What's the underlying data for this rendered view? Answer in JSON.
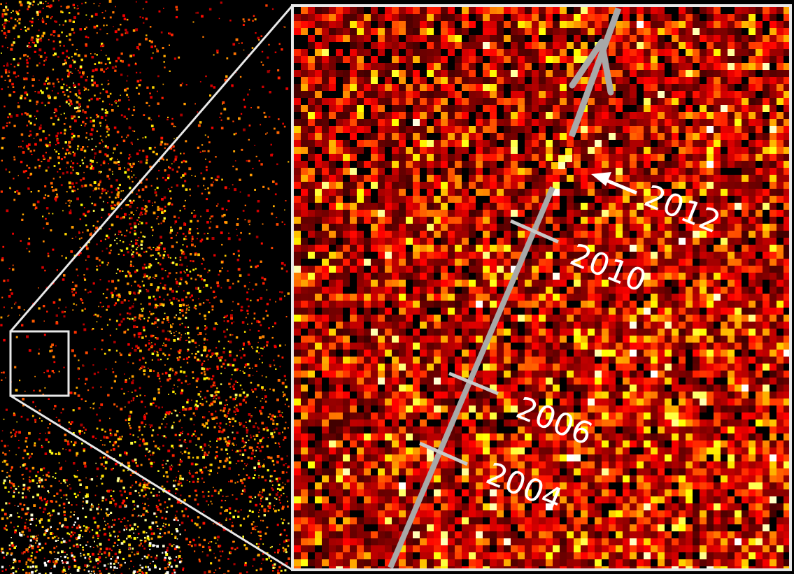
{
  "figure": {
    "year_labels": [
      {
        "id": "2012",
        "text": "2012"
      },
      {
        "id": "2010",
        "text": "2010"
      },
      {
        "id": "2006",
        "text": "2006"
      },
      {
        "id": "2004",
        "text": "2004"
      }
    ],
    "colors": {
      "background": "#000000",
      "frame": "#e8e8e8",
      "track": "#a8a8a8",
      "arrow": "#ffffff",
      "label": "#ffffff"
    },
    "colormap": "hot"
  }
}
